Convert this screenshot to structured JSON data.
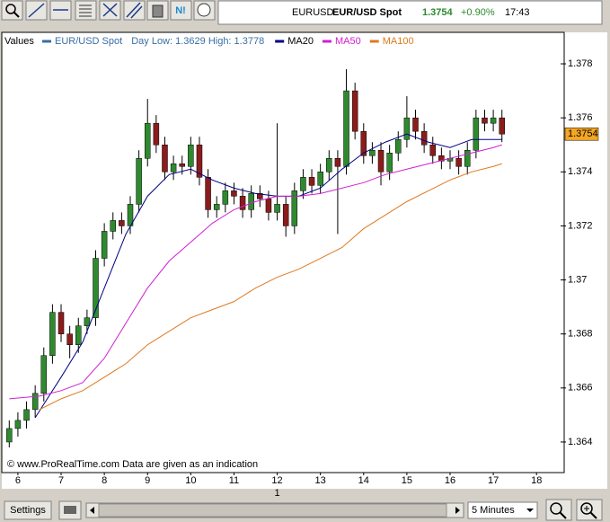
{
  "toolbar": {
    "news_button": "N!"
  },
  "header": {
    "symbol": "EURUSD",
    "name": "EUR/USD Spot",
    "price": "1.3754",
    "change": "+0.90%",
    "time": "17:43"
  },
  "chart_data": {
    "type": "candlestick",
    "legend_label": "Values",
    "day_range": "Day Low: 1.3629 High: 1.3778",
    "x": [
      5.8,
      6.0,
      6.2,
      6.4,
      6.6,
      6.8,
      7.0,
      7.2,
      7.4,
      7.6,
      7.8,
      8.0,
      8.2,
      8.4,
      8.6,
      8.8,
      9.0,
      9.2,
      9.4,
      9.6,
      9.8,
      10.0,
      10.2,
      10.4,
      10.6,
      10.8,
      11.0,
      11.2,
      11.4,
      11.6,
      11.8,
      12.0,
      12.2,
      12.4,
      12.6,
      12.8,
      13.0,
      13.2,
      13.4,
      13.6,
      13.8,
      14.0,
      14.2,
      14.4,
      14.6,
      14.8,
      15.0,
      15.2,
      15.4,
      15.6,
      15.8,
      16.0,
      16.2,
      16.4,
      16.6,
      16.8,
      17.0,
      17.2
    ],
    "series": [
      {
        "name": "EUR/USD Spot",
        "type": "candlestick",
        "color": "#3a6ea5",
        "up_color": "#2f8a2f",
        "down_color": "#8b1c1c",
        "open": [
          1.364,
          1.3645,
          1.3648,
          1.3652,
          1.3658,
          1.3672,
          1.3688,
          1.368,
          1.3676,
          1.3683,
          1.3686,
          1.3708,
          1.3718,
          1.3722,
          1.372,
          1.3728,
          1.3745,
          1.3758,
          1.375,
          1.374,
          1.3743,
          1.3742,
          1.375,
          1.3738,
          1.3726,
          1.3728,
          1.3733,
          1.3731,
          1.3726,
          1.3732,
          1.373,
          1.3725,
          1.3728,
          1.372,
          1.3733,
          1.3738,
          1.3735,
          1.374,
          1.3745,
          1.3742,
          1.377,
          1.3755,
          1.3746,
          1.3748,
          1.374,
          1.3747,
          1.3752,
          1.376,
          1.3755,
          1.375,
          1.3746,
          1.3744,
          1.3745,
          1.3742,
          1.3748,
          1.376,
          1.3758,
          1.376
        ],
        "high": [
          1.3648,
          1.3651,
          1.3655,
          1.3661,
          1.3675,
          1.3691,
          1.3691,
          1.3683,
          1.3686,
          1.3689,
          1.3711,
          1.3721,
          1.3725,
          1.3725,
          1.3731,
          1.3748,
          1.3767,
          1.3761,
          1.3753,
          1.3746,
          1.3746,
          1.3753,
          1.3753,
          1.3741,
          1.3731,
          1.3736,
          1.3736,
          1.3734,
          1.3735,
          1.3735,
          1.3733,
          1.3758,
          1.3731,
          1.3736,
          1.3741,
          1.3741,
          1.3743,
          1.3748,
          1.3748,
          1.3778,
          1.3773,
          1.3758,
          1.3751,
          1.3751,
          1.375,
          1.3755,
          1.3768,
          1.3763,
          1.3758,
          1.3753,
          1.3749,
          1.3748,
          1.3748,
          1.3751,
          1.3763,
          1.3763,
          1.3763,
          1.3763
        ],
        "low": [
          1.3638,
          1.3642,
          1.3645,
          1.3649,
          1.3655,
          1.3669,
          1.3677,
          1.3671,
          1.3673,
          1.368,
          1.3683,
          1.3705,
          1.3715,
          1.3717,
          1.3717,
          1.3725,
          1.3742,
          1.3747,
          1.3737,
          1.3737,
          1.3739,
          1.3739,
          1.3735,
          1.3723,
          1.3723,
          1.3725,
          1.3728,
          1.3723,
          1.3723,
          1.3727,
          1.3722,
          1.3722,
          1.3716,
          1.3717,
          1.373,
          1.3732,
          1.3732,
          1.3737,
          1.3717,
          1.3739,
          1.3752,
          1.3743,
          1.3743,
          1.3735,
          1.3737,
          1.3744,
          1.3749,
          1.3752,
          1.3747,
          1.3743,
          1.3741,
          1.3741,
          1.3739,
          1.3739,
          1.3745,
          1.3755,
          1.3755,
          1.3751
        ],
        "close": [
          1.3645,
          1.3648,
          1.3652,
          1.3658,
          1.3672,
          1.3688,
          1.368,
          1.3676,
          1.3683,
          1.3686,
          1.3708,
          1.3718,
          1.3722,
          1.372,
          1.3728,
          1.3745,
          1.3758,
          1.375,
          1.374,
          1.3743,
          1.3742,
          1.375,
          1.3738,
          1.3726,
          1.3728,
          1.3733,
          1.3731,
          1.3726,
          1.3732,
          1.373,
          1.3725,
          1.3728,
          1.372,
          1.3733,
          1.3738,
          1.3735,
          1.374,
          1.3745,
          1.3742,
          1.377,
          1.3755,
          1.3746,
          1.3748,
          1.374,
          1.3747,
          1.3752,
          1.376,
          1.3755,
          1.375,
          1.3746,
          1.3744,
          1.3745,
          1.3742,
          1.3748,
          1.376,
          1.3758,
          1.376,
          1.3754
        ]
      },
      {
        "name": "MA20",
        "type": "line",
        "color": "#000080",
        "x": [
          6.4,
          7.0,
          7.5,
          8.0,
          8.5,
          9.0,
          9.5,
          10.0,
          10.5,
          11.0,
          11.5,
          12.0,
          12.5,
          13.0,
          13.5,
          14.0,
          14.5,
          15.0,
          15.5,
          16.0,
          16.5,
          17.0,
          17.2
        ],
        "values": [
          1.3649,
          1.3664,
          1.3677,
          1.3697,
          1.3717,
          1.3731,
          1.3739,
          1.3741,
          1.3737,
          1.3734,
          1.3732,
          1.3731,
          1.3731,
          1.3734,
          1.3741,
          1.3747,
          1.3751,
          1.3754,
          1.3751,
          1.3749,
          1.3752,
          1.3752,
          1.3752
        ]
      },
      {
        "name": "MA50",
        "type": "line",
        "color": "#d020d0",
        "x": [
          5.8,
          6.5,
          7.0,
          7.5,
          8.0,
          8.5,
          9.0,
          9.5,
          10.0,
          10.5,
          11.0,
          11.5,
          12.0,
          12.5,
          13.0,
          13.5,
          14.0,
          14.5,
          15.0,
          15.5,
          16.0,
          16.5,
          17.0,
          17.2
        ],
        "values": [
          1.3656,
          1.3657,
          1.3659,
          1.3662,
          1.3671,
          1.3684,
          1.3697,
          1.3707,
          1.3714,
          1.3721,
          1.3726,
          1.3729,
          1.3731,
          1.3731,
          1.3732,
          1.3734,
          1.3736,
          1.3739,
          1.3741,
          1.3743,
          1.3745,
          1.3747,
          1.3749,
          1.375
        ]
      },
      {
        "name": "MA100",
        "type": "line",
        "color": "#e07820",
        "x": [
          6.5,
          7.0,
          7.5,
          8.0,
          8.5,
          9.0,
          9.5,
          10.0,
          10.5,
          11.0,
          11.5,
          12.0,
          12.5,
          13.0,
          13.5,
          14.0,
          14.5,
          15.0,
          15.5,
          16.0,
          16.5,
          17.0,
          17.2
        ],
        "values": [
          1.3652,
          1.3656,
          1.3659,
          1.3664,
          1.3669,
          1.3676,
          1.3681,
          1.3686,
          1.3689,
          1.3692,
          1.3697,
          1.3701,
          1.3704,
          1.3708,
          1.3712,
          1.3719,
          1.3724,
          1.3729,
          1.3733,
          1.3737,
          1.374,
          1.3742,
          1.3743
        ]
      }
    ],
    "xlim": [
      5.69,
      18.64
    ],
    "xticks": [
      6,
      7,
      8,
      9,
      10,
      11,
      12,
      13,
      14,
      15,
      16,
      17,
      18
    ],
    "x_day_ticks": [
      {
        "value": 12,
        "label": "1"
      }
    ],
    "ylim": [
      1.3634,
      1.3785
    ],
    "yticks": [
      1.364,
      1.366,
      1.368,
      1.37,
      1.372,
      1.374,
      1.376,
      1.378
    ],
    "last_price": 1.3754,
    "last_price_color": "#f5a623",
    "footer": "© www.ProRealTime.com Data are given as an indication"
  },
  "controls": {
    "settings": "Settings",
    "timeframe": "5 Minutes"
  }
}
